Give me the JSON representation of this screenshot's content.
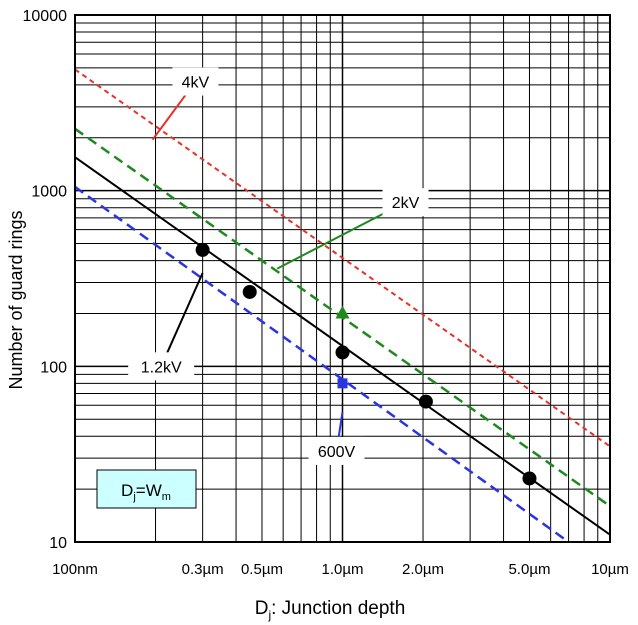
{
  "chart_data": {
    "type": "line",
    "x_scale": "log",
    "y_scale": "log",
    "xlim": [
      0.1,
      10
    ],
    "ylim": [
      10,
      10000
    ],
    "xlabel_main": "D",
    "xlabel_sub": "j",
    "xlabel_rest": ": Junction depth",
    "ylabel": "Number of guard rings",
    "x_ticks": [
      {
        "value": 0.1,
        "label": "100nm"
      },
      {
        "value": 0.3,
        "label": "0.3µm"
      },
      {
        "value": 0.5,
        "label": "0.5µm"
      },
      {
        "value": 1.0,
        "label": "1.0µm"
      },
      {
        "value": 2.0,
        "label": "2.0µm"
      },
      {
        "value": 5.0,
        "label": "5.0µm"
      },
      {
        "value": 10,
        "label": "10µm"
      }
    ],
    "y_ticks": [
      {
        "value": 10,
        "label": "10"
      },
      {
        "value": 100,
        "label": "100"
      },
      {
        "value": 1000,
        "label": "1000"
      },
      {
        "value": 10000,
        "label": "10000"
      }
    ],
    "grid": true,
    "series": [
      {
        "name": "4kV",
        "color": "#e8302a",
        "dash": "fine",
        "line": {
          "x": [
            0.1,
            10
          ],
          "y": [
            4900,
            35
          ]
        }
      },
      {
        "name": "2kV",
        "color": "#1e8a1e",
        "dash": "long",
        "line": {
          "x": [
            0.1,
            10
          ],
          "y": [
            2250,
            16
          ]
        },
        "points": {
          "x": [
            1.0
          ],
          "y": [
            200
          ]
        },
        "marker": "triangle"
      },
      {
        "name": "1.2kV",
        "color": "#000000",
        "dash": "solid",
        "line": {
          "x": [
            0.1,
            10
          ],
          "y": [
            1550,
            11
          ]
        },
        "points": {
          "x": [
            0.3,
            0.45,
            1.0,
            2.05,
            5.0
          ],
          "y": [
            460,
            265,
            120,
            63,
            23
          ]
        },
        "marker": "circle"
      },
      {
        "name": "600V",
        "color": "#2a35e0",
        "dash": "long",
        "line": {
          "x": [
            0.1,
            7.0
          ],
          "y": [
            1050,
            10
          ]
        },
        "points": {
          "x": [
            1.0
          ],
          "y": [
            80
          ]
        },
        "marker": "square"
      }
    ],
    "annotations": [
      {
        "text": "4kV",
        "box_at": [
          0.282,
          4180
        ],
        "arrow_to": [
          0.195,
          1950
        ]
      },
      {
        "text": "2kV",
        "box_at": [
          1.72,
          860
        ],
        "arrow_to": [
          0.57,
          360
        ]
      },
      {
        "text": "1.2kV",
        "box_at": [
          0.21,
          100
        ],
        "arrow_to": [
          0.3,
          340
        ]
      },
      {
        "text": "600V",
        "box_at": [
          0.95,
          33
        ],
        "arrow_to": [
          1.0,
          55
        ]
      }
    ],
    "label_box": {
      "text_main": "D",
      "text_sub_1": "j",
      "text_mid": "=W",
      "text_sub_2": "m"
    }
  }
}
